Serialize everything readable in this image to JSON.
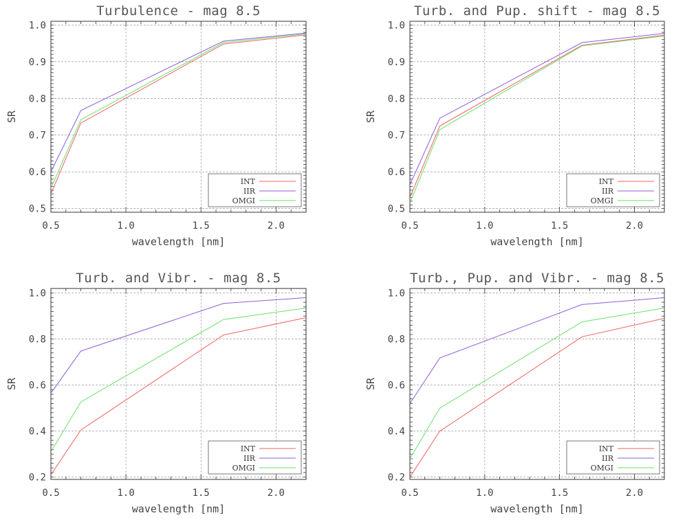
{
  "chart_data": [
    {
      "type": "line",
      "title": "Turbulence - mag 8.5",
      "xlabel": "wavelength [nm]",
      "ylabel": "SR",
      "xlim": [
        0.5,
        2.2
      ],
      "ylim": [
        0.49,
        1.01
      ],
      "xticks": [
        "0.5",
        "1.0",
        "1.5",
        "2.0"
      ],
      "yticks": [
        "0.5",
        "0.6",
        "0.7",
        "0.8",
        "0.9",
        "1.0"
      ],
      "grid": true,
      "legend_position": "bottom-right",
      "x": [
        0.5,
        0.7,
        1.65,
        2.2
      ],
      "series": [
        {
          "name": "INT",
          "color": "#f06060",
          "values": [
            0.54,
            0.733,
            0.948,
            0.973
          ]
        },
        {
          "name": "IIR",
          "color": "#8a5cd8",
          "values": [
            0.6,
            0.767,
            0.956,
            0.978
          ]
        },
        {
          "name": "OMGI",
          "color": "#66e066",
          "values": [
            0.555,
            0.742,
            0.952,
            0.976
          ]
        }
      ]
    },
    {
      "type": "line",
      "title": "Turb. and Pup. shift - mag 8.5",
      "xlabel": "wavelength [nm]",
      "ylabel": "SR",
      "xlim": [
        0.5,
        2.2
      ],
      "ylim": [
        0.49,
        1.01
      ],
      "xticks": [
        "0.5",
        "1.0",
        "1.5",
        "2.0"
      ],
      "yticks": [
        "0.5",
        "0.6",
        "0.7",
        "0.8",
        "0.9",
        "1.0"
      ],
      "grid": true,
      "legend_position": "bottom-right",
      "x": [
        0.5,
        0.7,
        1.65,
        2.2
      ],
      "series": [
        {
          "name": "INT",
          "color": "#f06060",
          "values": [
            0.53,
            0.725,
            0.945,
            0.972
          ]
        },
        {
          "name": "IIR",
          "color": "#8a5cd8",
          "values": [
            0.565,
            0.746,
            0.952,
            0.977
          ]
        },
        {
          "name": "OMGI",
          "color": "#66e066",
          "values": [
            0.515,
            0.715,
            0.943,
            0.97
          ]
        }
      ]
    },
    {
      "type": "line",
      "title": "Turb. and Vibr. - mag 8.5",
      "xlabel": "wavelength [nm]",
      "ylabel": "SR",
      "xlim": [
        0.5,
        2.2
      ],
      "ylim": [
        0.19,
        1.02
      ],
      "xticks": [
        "0.5",
        "1.0",
        "1.5",
        "2.0"
      ],
      "yticks": [
        "0.2",
        "0.4",
        "0.6",
        "0.8",
        "1.0"
      ],
      "grid": true,
      "legend_position": "bottom-right",
      "x": [
        0.5,
        0.7,
        1.65,
        2.2
      ],
      "series": [
        {
          "name": "INT",
          "color": "#f06060",
          "values": [
            0.21,
            0.405,
            0.818,
            0.893
          ]
        },
        {
          "name": "IIR",
          "color": "#8a5cd8",
          "values": [
            0.565,
            0.748,
            0.955,
            0.98
          ]
        },
        {
          "name": "OMGI",
          "color": "#66e066",
          "values": [
            0.31,
            0.527,
            0.885,
            0.935
          ]
        }
      ]
    },
    {
      "type": "line",
      "title": "Turb., Pup. and Vibr. - mag 8.5",
      "xlabel": "wavelength [nm]",
      "ylabel": "SR",
      "xlim": [
        0.5,
        2.2
      ],
      "ylim": [
        0.19,
        1.02
      ],
      "xticks": [
        "0.5",
        "1.0",
        "1.5",
        "2.0"
      ],
      "yticks": [
        "0.2",
        "0.4",
        "0.6",
        "0.8",
        "1.0"
      ],
      "grid": true,
      "legend_position": "bottom-right",
      "x": [
        0.5,
        0.7,
        1.65,
        2.2
      ],
      "series": [
        {
          "name": "INT",
          "color": "#f06060",
          "values": [
            0.2,
            0.4,
            0.81,
            0.89
          ]
        },
        {
          "name": "IIR",
          "color": "#8a5cd8",
          "values": [
            0.52,
            0.718,
            0.95,
            0.98
          ]
        },
        {
          "name": "OMGI",
          "color": "#66e066",
          "values": [
            0.28,
            0.5,
            0.875,
            0.935
          ]
        }
      ]
    }
  ]
}
